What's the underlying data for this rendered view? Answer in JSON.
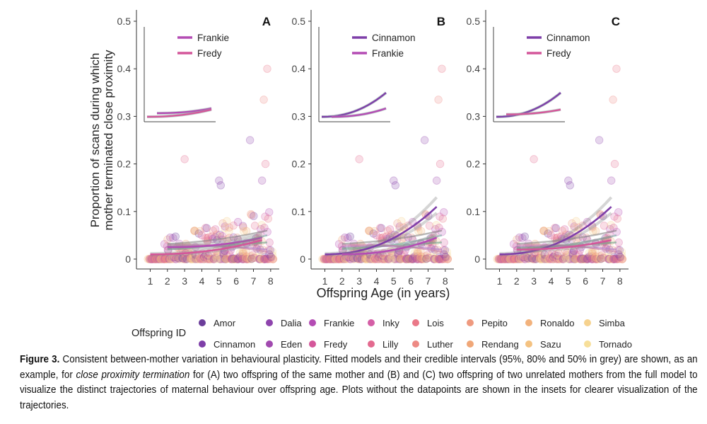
{
  "figure": {
    "ylabel_line1": "Proportion of scans during which",
    "ylabel_line2": "mother terminated close proximity",
    "xlabel": "Offspring Age (in years)",
    "legend_title": "Offspring ID"
  },
  "caption": {
    "label": "Figure 3.",
    "text1": " Consistent between-mother variation in behavioural plasticity. Fitted models and their credible intervals (95%, 80% and 50% in grey) are shown, as an example, for ",
    "italic": "close proximity termination",
    "text2": " for (A) two offspring of the same mother and (B) and (C) two offspring of two unrelated mothers from the full model to visualize the distinct trajectories of maternal behaviour over offspring age. Plots without the datapoints are shown in the insets for clearer visualization of the trajectories."
  },
  "chart_data": [
    {
      "type": "scatter",
      "panel": "A",
      "xlabel": "Offspring Age (in years)",
      "ylabel": "Proportion of scans during which mother terminated close proximity",
      "xlim": [
        0.2,
        8.5
      ],
      "ylim": [
        0,
        0.5
      ],
      "x_ticks": [
        1,
        2,
        3,
        4,
        5,
        6,
        7,
        8
      ],
      "y_ticks": [
        0,
        0.1,
        0.2,
        0.3,
        0.4,
        0.5
      ],
      "y_tick_labels": [
        "0",
        "0.1",
        "0.2",
        "0.3",
        "0.4",
        "0.5"
      ],
      "highlight": [
        {
          "name": "Frankie",
          "color": "#b44cb4",
          "x": [
            2,
            7.5
          ],
          "y": [
            0.025,
            0.045
          ]
        },
        {
          "name": "Fredy",
          "color": "#d4579a",
          "x": [
            1,
            7.5
          ],
          "y": [
            0.01,
            0.04
          ]
        }
      ],
      "other_fits_end": [
        0.05,
        0.035,
        0.02,
        0.015,
        0.06
      ],
      "inset": {
        "legend": [
          "Frankie",
          "Fredy"
        ]
      }
    },
    {
      "type": "scatter",
      "panel": "B",
      "xlabel": "Offspring Age (in years)",
      "ylabel": "",
      "xlim": [
        0.2,
        8.5
      ],
      "ylim": [
        0,
        0.5
      ],
      "x_ticks": [
        1,
        2,
        3,
        4,
        5,
        6,
        7,
        8
      ],
      "y_ticks": [
        0,
        0.1,
        0.2,
        0.3,
        0.4,
        0.5
      ],
      "y_tick_labels": [
        "0",
        "0.1",
        "0.2",
        "0.3",
        "0.4",
        "0.5"
      ],
      "highlight": [
        {
          "name": "Cinnamon",
          "color": "#7e3fa8",
          "x": [
            1,
            7.5
          ],
          "y": [
            0.01,
            0.11
          ]
        },
        {
          "name": "Frankie",
          "color": "#b44cb4",
          "x": [
            2,
            7.5
          ],
          "y": [
            0.01,
            0.045
          ]
        }
      ],
      "other_fits_end": [
        0.05,
        0.035,
        0.02,
        0.015,
        0.06
      ],
      "inset": {
        "legend": [
          "Cinnamon",
          "Frankie"
        ]
      }
    },
    {
      "type": "scatter",
      "panel": "C",
      "xlabel": "Offspring Age (in years)",
      "ylabel": "",
      "xlim": [
        0.2,
        8.5
      ],
      "ylim": [
        0,
        0.5
      ],
      "x_ticks": [
        1,
        2,
        3,
        4,
        5,
        6,
        7,
        8
      ],
      "y_ticks": [
        0,
        0.1,
        0.2,
        0.3,
        0.4,
        0.5
      ],
      "y_tick_labels": [
        "0",
        "0.1",
        "0.2",
        "0.3",
        "0.4",
        "0.5"
      ],
      "highlight": [
        {
          "name": "Cinnamon",
          "color": "#7e3fa8",
          "x": [
            1,
            7.5
          ],
          "y": [
            0.01,
            0.11
          ]
        },
        {
          "name": "Fredy",
          "color": "#d4579a",
          "x": [
            2,
            7.5
          ],
          "y": [
            0.02,
            0.04
          ]
        }
      ],
      "other_fits_end": [
        0.05,
        0.035,
        0.02,
        0.015,
        0.06
      ],
      "inset": {
        "legend": [
          "Cinnamon",
          "Fredy"
        ]
      }
    }
  ],
  "legend": {
    "title": "Offspring ID",
    "items": [
      {
        "name": "Amor",
        "color": "#6b3d9a"
      },
      {
        "name": "Cinnamon",
        "color": "#7e3fa8"
      },
      {
        "name": "Dalia",
        "color": "#8e44ad"
      },
      {
        "name": "Eden",
        "color": "#a14aaf"
      },
      {
        "name": "Frankie",
        "color": "#b44cb4"
      },
      {
        "name": "Fredy",
        "color": "#d4579a"
      },
      {
        "name": "Inky",
        "color": "#d45fa6"
      },
      {
        "name": "Lilly",
        "color": "#e36a8f"
      },
      {
        "name": "Lois",
        "color": "#ea7888"
      },
      {
        "name": "Luther",
        "color": "#ed8a84"
      },
      {
        "name": "Pepito",
        "color": "#ef9a7f"
      },
      {
        "name": "Rendang",
        "color": "#f0a778"
      },
      {
        "name": "Ronaldo",
        "color": "#f2b27c"
      },
      {
        "name": "Sazu",
        "color": "#f4c281"
      },
      {
        "name": "Simba",
        "color": "#f6d28e"
      },
      {
        "name": "Tornado",
        "color": "#f7df9a"
      }
    ]
  }
}
